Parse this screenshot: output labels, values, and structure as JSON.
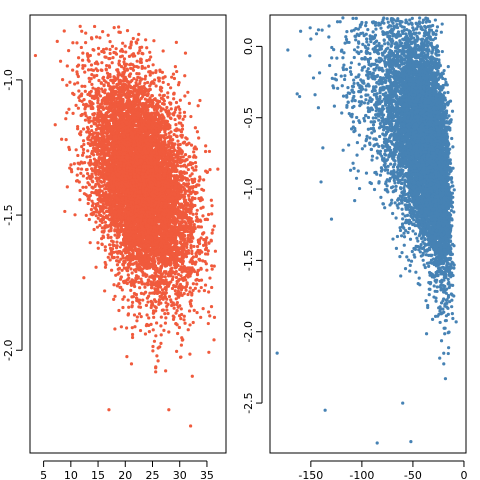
{
  "chart_data": [
    {
      "type": "scatter",
      "title": "",
      "xlabel": "",
      "ylabel": "",
      "color": "#f05a3c",
      "xlim": [
        2.5,
        38.5
      ],
      "ylim": [
        -2.38,
        -0.76
      ],
      "xticks": [
        5,
        10,
        15,
        20,
        25,
        30,
        35
      ],
      "xtick_labels": [
        "5",
        "10",
        "15",
        "20",
        "25",
        "30",
        "35"
      ],
      "yticks": [
        -1.0,
        -1.5,
        -2.0
      ],
      "ytick_labels": [
        "-1.0",
        "-1.5",
        "-2.0"
      ],
      "grid": false,
      "distribution": {
        "n": 9000,
        "x_mean": 23,
        "x_sd": 4.6,
        "y_mean": -1.38,
        "y_sd": 0.2,
        "correlation": -0.4,
        "x_range": [
          3,
          37
        ],
        "y_range": [
          -2.3,
          -0.8
        ]
      },
      "highlighted_points": [
        {
          "x": 3.5,
          "y": -0.91
        },
        {
          "x": 12.0,
          "y": -0.82
        },
        {
          "x": 22.0,
          "y": -0.86
        },
        {
          "x": 17.0,
          "y": -2.22
        },
        {
          "x": 28.0,
          "y": -2.22
        },
        {
          "x": 32.0,
          "y": -2.28
        },
        {
          "x": 37.0,
          "y": -1.33
        }
      ]
    },
    {
      "type": "scatter",
      "title": "",
      "xlabel": "",
      "ylabel": "",
      "color": "#4682b4",
      "xlim": [
        -190,
        2
      ],
      "ylim": [
        -2.85,
        0.22
      ],
      "xticks": [
        -150,
        -100,
        -50,
        0
      ],
      "xtick_labels": [
        "-150",
        "-100",
        "-50",
        "0"
      ],
      "yticks": [
        0.0,
        -0.5,
        -1.0,
        -1.5,
        -2.0,
        -2.5
      ],
      "ytick_labels": [
        "0.0",
        "-0.5",
        "-1.0",
        "-1.5",
        "-2.0",
        "-2.5"
      ],
      "grid": false,
      "distribution": {
        "n": 9000,
        "x_mean": -42,
        "x_sd": 17,
        "y_mean": -0.68,
        "y_sd": 0.42,
        "correlation": 0.55,
        "x_skew": "left",
        "x_range": [
          -190,
          -3
        ],
        "y_range": [
          -2.8,
          0.2
        ]
      },
      "highlighted_points": [
        {
          "x": -183,
          "y": -2.15
        },
        {
          "x": -136,
          "y": -2.55
        },
        {
          "x": -140,
          "y": -0.95
        },
        {
          "x": -85,
          "y": -2.78
        },
        {
          "x": -52,
          "y": -2.77
        },
        {
          "x": -60,
          "y": -2.5
        },
        {
          "x": -35,
          "y": 0.18
        }
      ]
    }
  ]
}
